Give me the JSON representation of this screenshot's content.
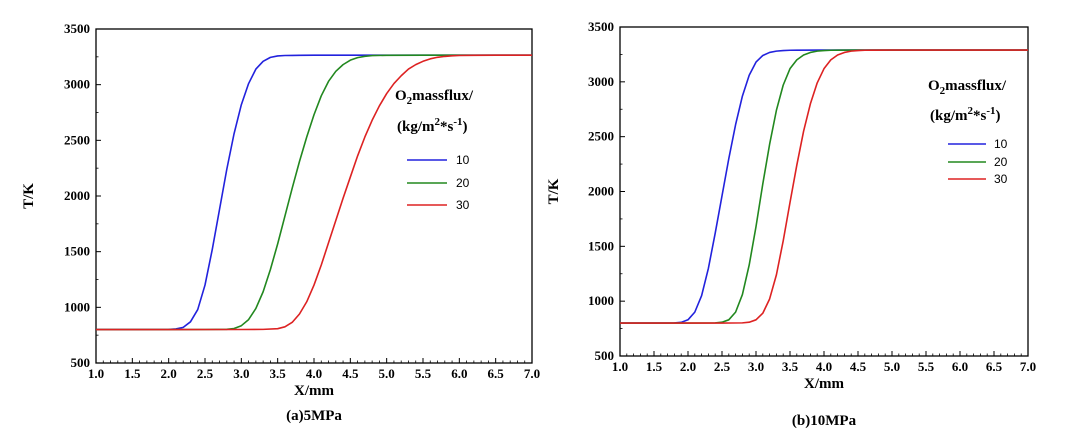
{
  "chart_data": [
    {
      "type": "line",
      "caption": "(a)5MPa",
      "xlabel": "X/mm",
      "ylabel": "T/K",
      "xlim": [
        1.0,
        7.0
      ],
      "ylim": [
        500,
        3500
      ],
      "x_ticks": [
        "1.0",
        "1.5",
        "2.0",
        "2.5",
        "3.0",
        "3.5",
        "4.0",
        "4.5",
        "5.0",
        "5.5",
        "6.0",
        "6.5",
        "7.0"
      ],
      "y_ticks": [
        "500",
        "1000",
        "1500",
        "2000",
        "2500",
        "3000",
        "3500"
      ],
      "legend_title": {
        "o": "O",
        "sub": "2",
        "text": "massflux/",
        "line2_pre": "(kg/m",
        "sup1": "2",
        "mid": "*s",
        "sup2": "-1",
        "line2_post": ")"
      },
      "legend_position": "right-middle",
      "series": [
        {
          "name": "10",
          "color": "#2222dd",
          "x": [
            1.0,
            1.5,
            2.0,
            2.1,
            2.2,
            2.3,
            2.4,
            2.5,
            2.6,
            2.7,
            2.8,
            2.9,
            3.0,
            3.1,
            3.2,
            3.3,
            3.4,
            3.5,
            3.6,
            3.7,
            3.8,
            4.0,
            4.5,
            5.0,
            6.0,
            7.0
          ],
          "y": [
            800,
            800,
            802,
            806,
            820,
            870,
            980,
            1200,
            1520,
            1880,
            2240,
            2560,
            2820,
            3010,
            3140,
            3210,
            3245,
            3258,
            3262,
            3263,
            3264,
            3265,
            3265,
            3265,
            3265,
            3265
          ]
        },
        {
          "name": "20",
          "color": "#22881f",
          "x": [
            1.0,
            2.0,
            2.5,
            2.8,
            2.9,
            3.0,
            3.1,
            3.2,
            3.3,
            3.4,
            3.5,
            3.6,
            3.7,
            3.8,
            3.9,
            4.0,
            4.1,
            4.2,
            4.3,
            4.4,
            4.5,
            4.6,
            4.7,
            4.8,
            5.0,
            5.5,
            6.0,
            7.0
          ],
          "y": [
            800,
            800,
            801,
            803,
            810,
            835,
            890,
            990,
            1140,
            1340,
            1570,
            1820,
            2070,
            2310,
            2530,
            2730,
            2900,
            3030,
            3120,
            3180,
            3220,
            3243,
            3255,
            3261,
            3264,
            3265,
            3265,
            3265
          ]
        },
        {
          "name": "30",
          "color": "#dd2222",
          "x": [
            1.0,
            2.0,
            3.0,
            3.3,
            3.5,
            3.6,
            3.7,
            3.8,
            3.9,
            4.0,
            4.1,
            4.2,
            4.3,
            4.4,
            4.5,
            4.6,
            4.7,
            4.8,
            4.9,
            5.0,
            5.1,
            5.2,
            5.3,
            5.4,
            5.5,
            5.6,
            5.7,
            5.8,
            5.9,
            6.0,
            6.2,
            6.5,
            7.0
          ],
          "y": [
            800,
            800,
            801,
            802,
            808,
            825,
            865,
            940,
            1050,
            1200,
            1380,
            1580,
            1780,
            1980,
            2170,
            2360,
            2530,
            2680,
            2810,
            2920,
            3010,
            3080,
            3140,
            3180,
            3210,
            3232,
            3246,
            3254,
            3259,
            3262,
            3264,
            3265,
            3265
          ]
        }
      ]
    },
    {
      "type": "line",
      "caption": "(b)10MPa",
      "xlabel": "X/mm",
      "ylabel": "T/K",
      "xlim": [
        1.0,
        7.0
      ],
      "ylim": [
        500,
        3500
      ],
      "x_ticks": [
        "1.0",
        "1.5",
        "2.0",
        "2.5",
        "3.0",
        "3.5",
        "4.0",
        "4.5",
        "5.0",
        "5.5",
        "6.0",
        "6.5",
        "7.0"
      ],
      "y_ticks": [
        "500",
        "1000",
        "1500",
        "2000",
        "2500",
        "3000",
        "3500"
      ],
      "legend_title": {
        "o": "O",
        "sub": "2",
        "text": "massflux/",
        "line2_pre": "(kg/m",
        "sup1": "2",
        "mid": "*s",
        "sup2": "-1",
        "line2_post": ")"
      },
      "legend_position": "right-upper",
      "series": [
        {
          "name": "10",
          "color": "#2222dd",
          "x": [
            1.0,
            1.5,
            1.8,
            1.9,
            2.0,
            2.1,
            2.2,
            2.3,
            2.4,
            2.5,
            2.6,
            2.7,
            2.8,
            2.9,
            3.0,
            3.1,
            3.2,
            3.3,
            3.4,
            3.5,
            3.6,
            4.0,
            5.0,
            6.0,
            7.0
          ],
          "y": [
            800,
            800,
            802,
            807,
            830,
            900,
            1050,
            1300,
            1620,
            1960,
            2300,
            2610,
            2870,
            3060,
            3180,
            3240,
            3268,
            3280,
            3285,
            3288,
            3289,
            3290,
            3290,
            3290,
            3290
          ]
        },
        {
          "name": "20",
          "color": "#22881f",
          "x": [
            1.0,
            2.0,
            2.4,
            2.5,
            2.6,
            2.7,
            2.8,
            2.9,
            3.0,
            3.1,
            3.2,
            3.3,
            3.4,
            3.5,
            3.6,
            3.7,
            3.8,
            3.9,
            4.0,
            4.1,
            4.2,
            4.5,
            5.0,
            6.0,
            7.0
          ],
          "y": [
            800,
            800,
            802,
            808,
            830,
            900,
            1060,
            1330,
            1680,
            2070,
            2430,
            2740,
            2970,
            3120,
            3200,
            3245,
            3268,
            3280,
            3285,
            3288,
            3289,
            3290,
            3290,
            3290,
            3290
          ]
        },
        {
          "name": "30",
          "color": "#dd2222",
          "x": [
            1.0,
            2.0,
            2.5,
            2.8,
            2.9,
            3.0,
            3.1,
            3.2,
            3.3,
            3.4,
            3.5,
            3.6,
            3.7,
            3.8,
            3.9,
            4.0,
            4.1,
            4.2,
            4.3,
            4.4,
            4.5,
            4.6,
            4.7,
            5.0,
            6.0,
            7.0
          ],
          "y": [
            800,
            800,
            800,
            802,
            808,
            830,
            890,
            1020,
            1240,
            1550,
            1900,
            2240,
            2550,
            2800,
            2990,
            3120,
            3200,
            3245,
            3268,
            3280,
            3285,
            3288,
            3289,
            3290,
            3290,
            3290
          ]
        }
      ]
    }
  ]
}
